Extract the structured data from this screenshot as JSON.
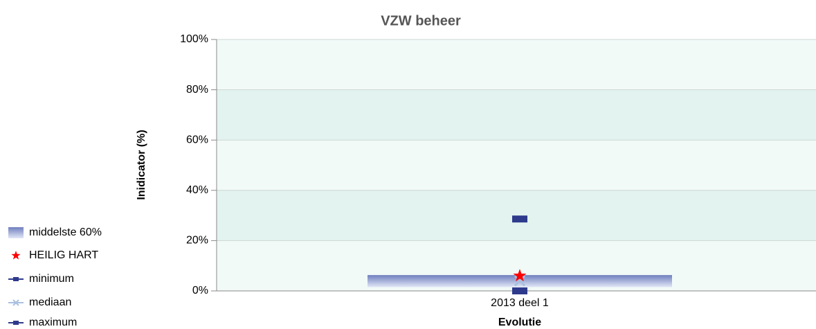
{
  "chart_data": {
    "type": "range-markers",
    "title": "VZW beheer",
    "y_label": "Inidicator (%)",
    "x_label": "Evolutie",
    "categories": [
      "2013 deel 1"
    ],
    "range": {
      "name": "middelste 60%",
      "color": "#6f7fbf",
      "low": [
        1.5
      ],
      "high": [
        6.3
      ]
    },
    "series": [
      {
        "name": "HEILIG HART",
        "color": "#ff0000",
        "marker": "star",
        "values": [
          6
        ]
      },
      {
        "name": "minimum",
        "color": "#2e3a8c",
        "marker": "square",
        "values": [
          0
        ]
      },
      {
        "name": "mediaan",
        "color": "#a9c0e0",
        "marker": "cross",
        "values": [
          4
        ]
      },
      {
        "name": "maximum",
        "color": "#2e3a8c",
        "marker": "square",
        "values": [
          28.6
        ]
      }
    ],
    "ylim": [
      0,
      100
    ],
    "yticks": [
      {
        "value": 0,
        "label": "0%"
      },
      {
        "value": 20,
        "label": "20%"
      },
      {
        "value": 40,
        "label": "40%"
      },
      {
        "value": 60,
        "label": "60%"
      },
      {
        "value": 80,
        "label": "80%"
      },
      {
        "value": 100,
        "label": "100%"
      }
    ],
    "grid": true
  }
}
